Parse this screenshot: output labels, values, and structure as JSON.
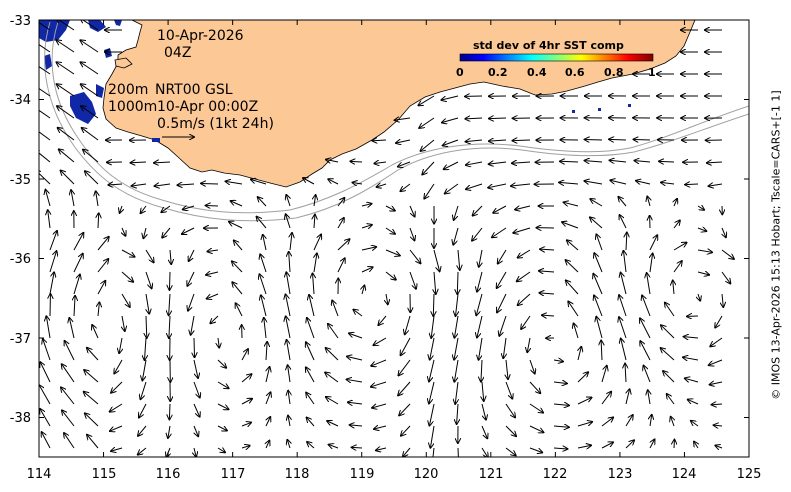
{
  "map": {
    "x_ticks": [
      "114",
      "115",
      "116",
      "117",
      "118",
      "119",
      "120",
      "121",
      "122",
      "123",
      "124",
      "125"
    ],
    "y_ticks": [
      "-33",
      "-34",
      "-35",
      "-36",
      "-37",
      "-38"
    ],
    "lon_range": [
      114,
      125
    ],
    "lat_range": [
      -38.5,
      -33
    ],
    "land_color": "#fcc896",
    "sst_blob_color": "#1027a6",
    "isobath_color": "#a0a0a0"
  },
  "annotations": {
    "date": "10-Apr-2026",
    "hour": "04Z",
    "isobath_200": "200m",
    "product": "NRT00 GSL",
    "isobath_1000": "1000m",
    "product_time": "10-Apr 00:00Z",
    "scale_label": "0.5m/s (1kt 24h)"
  },
  "colorbar": {
    "title": "std dev of 4hr SST comp",
    "ticks": [
      "0",
      "0.2",
      "0.4",
      "0.6",
      "0.8",
      "1"
    ]
  },
  "credit": "© IMOS 13-Apr-2026 15:13 Hobart; Tscale=CARS+[-1 1]"
}
